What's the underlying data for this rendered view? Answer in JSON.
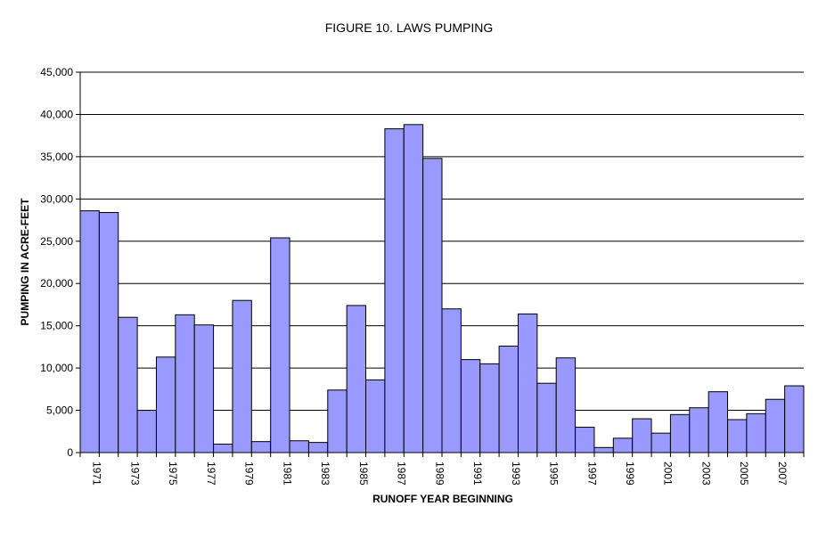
{
  "chart_data": {
    "type": "bar",
    "title": "FIGURE 10. LAWS PUMPING",
    "xlabel": "RUNOFF YEAR BEGINNING",
    "ylabel": "PUMPING IN ACRE-FEET",
    "ylim": [
      0,
      45000
    ],
    "y_ticks": [
      "0",
      "5,000",
      "10,000",
      "15,000",
      "20,000",
      "25,000",
      "30,000",
      "35,000",
      "40,000",
      "45,000"
    ],
    "grid": true,
    "legend": "none",
    "bar_color": "#9999ff",
    "categories": [
      "1971",
      "1972",
      "1973",
      "1974",
      "1975",
      "1976",
      "1977",
      "1978",
      "1979",
      "1980",
      "1981",
      "1982",
      "1983",
      "1984",
      "1985",
      "1986",
      "1987",
      "1988",
      "1989",
      "1990",
      "1991",
      "1992",
      "1993",
      "1994",
      "1995",
      "1996",
      "1997",
      "1998",
      "1999",
      "2000",
      "2001",
      "2002",
      "2003",
      "2004",
      "2005",
      "2006",
      "2007",
      "2008"
    ],
    "x_tick_labels": [
      "1971",
      "",
      "1973",
      "",
      "1975",
      "",
      "1977",
      "",
      "1979",
      "",
      "1981",
      "",
      "1983",
      "",
      "1985",
      "",
      "1987",
      "",
      "1989",
      "",
      "1991",
      "",
      "1993",
      "",
      "1995",
      "",
      "1997",
      "",
      "1999",
      "",
      "2001",
      "",
      "2003",
      "",
      "2005",
      "",
      "2007",
      ""
    ],
    "values": [
      28600,
      28400,
      16000,
      5000,
      11300,
      16300,
      15100,
      1000,
      18000,
      1300,
      25400,
      1400,
      1200,
      7400,
      17400,
      8600,
      38300,
      38800,
      34800,
      17000,
      11000,
      10500,
      12600,
      16400,
      8200,
      11200,
      3000,
      600,
      1700,
      4000,
      2300,
      4500,
      5300,
      7200,
      3900,
      4600,
      6300,
      7900
    ]
  }
}
